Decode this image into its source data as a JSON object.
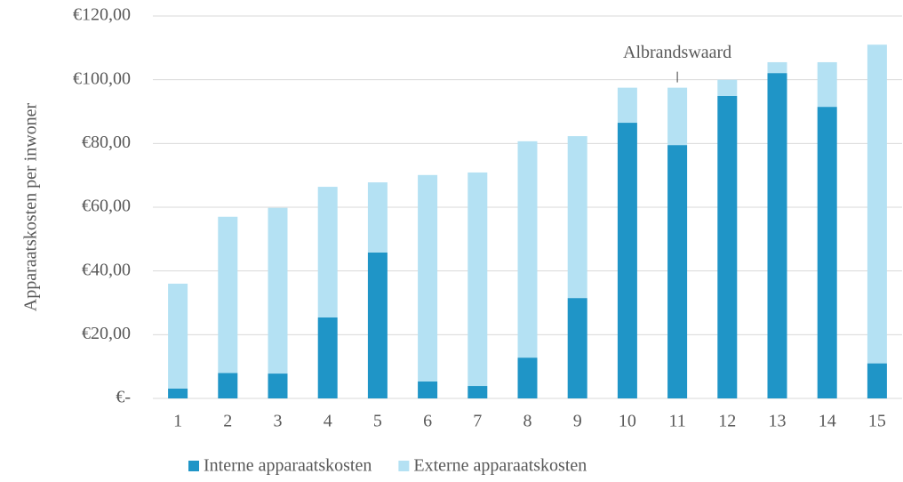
{
  "chart_data": {
    "type": "stacked_bar",
    "y_label": "Apparaatskosten per inwoner",
    "annotation": "Albrandswaard",
    "categories": [
      "1",
      "2",
      "3",
      "4",
      "5",
      "6",
      "7",
      "8",
      "9",
      "10",
      "11",
      "12",
      "13",
      "14",
      "15"
    ],
    "series": [
      {
        "name": "Interne apparaatskosten",
        "color": "#1f95c7",
        "values": [
          3.1,
          8,
          7.8,
          25.4,
          45.8,
          5.3,
          3.9,
          12.8,
          31.5,
          86.5,
          79.5,
          94.9,
          102.1,
          91.5,
          11
        ]
      },
      {
        "name": "Externe apparaatskosten",
        "color": "#b4e1f3",
        "values": [
          32.9,
          49,
          52,
          41,
          22,
          64.8,
          67,
          67.9,
          50.8,
          11,
          18,
          5.1,
          3.4,
          14,
          100
        ]
      }
    ],
    "ylim": [
      0,
      120
    ],
    "yticks": [
      {
        "value": 0,
        "label": "€-"
      },
      {
        "value": 20,
        "label": "€20,00"
      },
      {
        "value": 40,
        "label": "€40,00"
      },
      {
        "value": 60,
        "label": "€60,00"
      },
      {
        "value": 80,
        "label": "€80,00"
      },
      {
        "value": 100,
        "label": "€100,00"
      },
      {
        "value": 120,
        "label": "€120,00"
      }
    ],
    "grid": true,
    "legend": "bottom"
  }
}
